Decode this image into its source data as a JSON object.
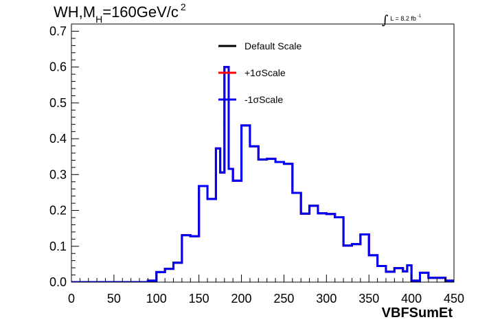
{
  "title": {
    "process": "WH,M",
    "subscript": "H",
    "mass": "=160GeV/c",
    "superscript": "2"
  },
  "luminosity": {
    "symbol": "∫",
    "text": "L = 8.2 fb",
    "superscript": "-1"
  },
  "chart_data": {
    "type": "line",
    "step": true,
    "xlabel": "VBFSumEt",
    "xlim": [
      0,
      450
    ],
    "ylim": [
      0,
      0.72
    ],
    "xticks": [
      0,
      50,
      100,
      150,
      200,
      250,
      300,
      350,
      400,
      450
    ],
    "xtick_labels": [
      "0",
      "50",
      "100",
      "150",
      "200",
      "250",
      "300",
      "350",
      "400",
      "450"
    ],
    "yticks": [
      0,
      0.1,
      0.2,
      0.3,
      0.4,
      0.5,
      0.6,
      0.7
    ],
    "ytick_labels": [
      "0.0",
      "0.1",
      "0.2",
      "0.3",
      "0.4",
      "0.5",
      "0.6",
      "0.7"
    ],
    "grid": false,
    "legend_position": "top-center",
    "bin_edges": [
      0,
      90,
      100,
      110,
      120,
      130,
      140,
      150,
      160,
      170,
      175,
      180,
      185,
      190,
      200,
      210,
      220,
      230,
      240,
      250,
      260,
      270,
      280,
      290,
      300,
      310,
      320,
      330,
      340,
      350,
      360,
      370,
      380,
      390,
      395,
      400,
      410,
      420,
      440,
      450
    ],
    "series": [
      {
        "name": "Default Scale",
        "color": "#000000",
        "values": [
          0.0,
          0.004,
          0.028,
          0.037,
          0.054,
          0.131,
          0.128,
          0.268,
          0.232,
          0.373,
          0.306,
          0.6,
          0.316,
          0.283,
          0.437,
          0.379,
          0.342,
          0.344,
          0.335,
          0.33,
          0.249,
          0.191,
          0.213,
          0.192,
          0.19,
          0.181,
          0.102,
          0.106,
          0.133,
          0.075,
          0.045,
          0.029,
          0.039,
          0.03,
          0.047,
          0.004,
          0.026,
          0.012,
          0.004
        ]
      },
      {
        "name": "+1σScale",
        "color": "#ff0000",
        "values": [
          0.0,
          0.004,
          0.028,
          0.037,
          0.054,
          0.131,
          0.128,
          0.268,
          0.232,
          0.373,
          0.306,
          0.6,
          0.316,
          0.283,
          0.437,
          0.379,
          0.342,
          0.344,
          0.335,
          0.33,
          0.249,
          0.191,
          0.213,
          0.192,
          0.19,
          0.181,
          0.102,
          0.106,
          0.133,
          0.075,
          0.045,
          0.029,
          0.039,
          0.03,
          0.047,
          0.004,
          0.026,
          0.012,
          0.004
        ]
      },
      {
        "name": "-1σScale",
        "color": "#0000ff",
        "values": [
          0.0,
          0.004,
          0.028,
          0.037,
          0.054,
          0.131,
          0.128,
          0.268,
          0.232,
          0.373,
          0.306,
          0.6,
          0.316,
          0.283,
          0.437,
          0.379,
          0.342,
          0.344,
          0.335,
          0.33,
          0.249,
          0.191,
          0.213,
          0.192,
          0.19,
          0.181,
          0.102,
          0.106,
          0.133,
          0.075,
          0.045,
          0.029,
          0.039,
          0.03,
          0.047,
          0.004,
          0.026,
          0.012,
          0.004
        ]
      }
    ]
  }
}
